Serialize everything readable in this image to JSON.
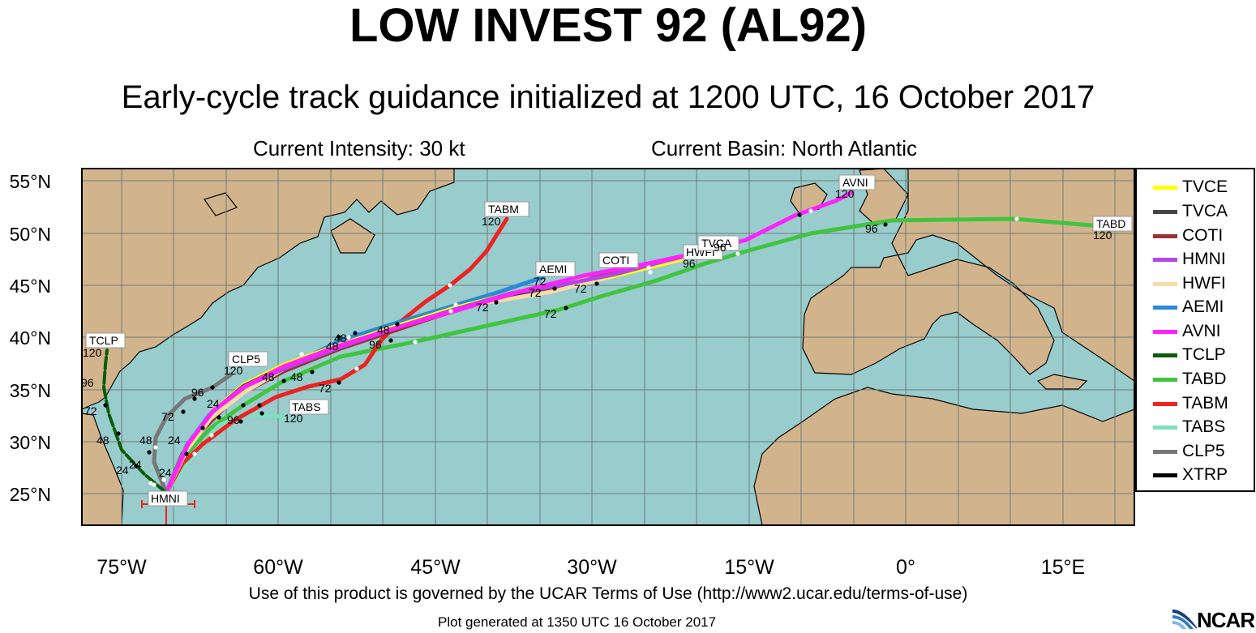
{
  "header": {
    "title": "LOW INVEST 92 (AL92)",
    "subtitle": "Early-cycle track guidance initialized at 1200 UTC, 16 October 2017",
    "intensity": "Current Intensity: 30 kt",
    "basin": "Current Basin: North Atlantic"
  },
  "axes": {
    "lat_labels": [
      "55°N",
      "50°N",
      "45°N",
      "40°N",
      "35°N",
      "30°N",
      "25°N"
    ],
    "lon_labels": [
      "75°W",
      "60°W",
      "45°W",
      "30°W",
      "15°W",
      "0°",
      "15°E"
    ]
  },
  "legend": {
    "items": [
      {
        "label": "TVCE",
        "color": "#ffff00"
      },
      {
        "label": "TVCA",
        "color": "#444444"
      },
      {
        "label": "COTI",
        "color": "#993333"
      },
      {
        "label": "HMNI",
        "color": "#b347e6"
      },
      {
        "label": "HWFI",
        "color": "#f7dca8"
      },
      {
        "label": "AEMI",
        "color": "#2a8ad9"
      },
      {
        "label": "AVNI",
        "color": "#ff22ff"
      },
      {
        "label": "TCLP",
        "color": "#0a5c0a"
      },
      {
        "label": "TABD",
        "color": "#40c440"
      },
      {
        "label": "TABM",
        "color": "#ee2222"
      },
      {
        "label": "TABS",
        "color": "#7ee0c0"
      },
      {
        "label": "CLP5",
        "color": "#777777"
      },
      {
        "label": "XTRP",
        "color": "#000000"
      }
    ]
  },
  "map_labels": {
    "tabm_name": "TABM",
    "tabm_hour": "120",
    "aemi_name": "AEMI",
    "aemi_hour": "72",
    "coti_name": "COTI",
    "coti_hour": "72",
    "hwfi_name": "HWFI",
    "hwfi_hour": "96",
    "tvca_name": "TVCA",
    "tvca_hour": "96",
    "avni_name": "AVNI",
    "avni_hour": "120",
    "tabd_name": "TABD",
    "tabd_hour": "120",
    "tabd_hour96": "96",
    "tclp_name": "TCLP",
    "tclp_hour": "120",
    "tclp_hour96": "96",
    "tclp_hour72": "72",
    "tclp_hour48": "48",
    "tclp_hour24": "24",
    "clp5_name": "CLP5",
    "clp5_hour": "120",
    "clp5_hour96": "96",
    "clp5_hour72": "72",
    "clp5_hour48": "48",
    "clp5_hour24": "24",
    "tabs_name": "TABS",
    "tabs_hour": "120",
    "tabs_hour96": "96",
    "hmni_name": "HMNI",
    "h48_a": "48",
    "h48_b": "48",
    "h48_c": "48",
    "h48_d": "48",
    "h48_e": "48",
    "h72_a": "72",
    "h72_b": "72",
    "h72_c": "72",
    "h72_d": "72",
    "h96_a": "96",
    "h24_a": "24",
    "h24_b": "24",
    "h24_c": "24"
  },
  "footer": {
    "terms": "Use of this product is governed by the UCAR Terms of Use (http://www2.ucar.edu/terms-of-use)",
    "generated": "Plot generated at 1350 UTC   16 October 2017",
    "logo_text": "NCAR"
  }
}
